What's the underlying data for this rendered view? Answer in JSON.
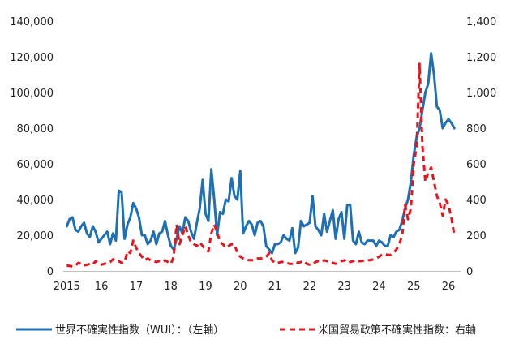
{
  "chart_data": {
    "type": "line",
    "x_start": 2015.0,
    "x_step": 0.0833333,
    "xlim": [
      2014.9,
      2026.35
    ],
    "x_ticks": [
      2015,
      2016,
      2017,
      2018,
      2019,
      2020,
      2021,
      2022,
      2023,
      2024,
      2025,
      2026
    ],
    "x_tick_labels": [
      "2015",
      "16",
      "17",
      "18",
      "19",
      "20",
      "21",
      "22",
      "23",
      "24",
      "25",
      "26"
    ],
    "y_left": {
      "lim": [
        0,
        140000
      ],
      "ticks": [
        0,
        20000,
        40000,
        60000,
        80000,
        100000,
        120000,
        140000
      ],
      "tick_labels": [
        "0",
        "20,000",
        "40,000",
        "60,000",
        "80,000",
        "100,000",
        "120,000",
        "140,000"
      ]
    },
    "y_right": {
      "lim": [
        0,
        1400
      ],
      "ticks": [
        0,
        200,
        400,
        600,
        800,
        1000,
        1200,
        1400
      ],
      "tick_labels": [
        "0",
        "200",
        "400",
        "600",
        "800",
        "1,000",
        "1,200",
        "1,400"
      ]
    },
    "grid": false,
    "legend_position": "bottom",
    "series": [
      {
        "name": "世界不確実性指数（WUI）：（左軸）",
        "axis": "left",
        "color": "#1f6fb4",
        "style": "solid",
        "values": [
          25000,
          29000,
          30000,
          23000,
          22000,
          25000,
          27000,
          21000,
          19000,
          25000,
          22000,
          16000,
          18000,
          20000,
          22000,
          15000,
          21000,
          17000,
          45000,
          44000,
          18000,
          26000,
          30000,
          38000,
          35000,
          30000,
          20000,
          20000,
          15000,
          17000,
          22000,
          15000,
          21000,
          22000,
          28000,
          20000,
          14000,
          12000,
          18000,
          25000,
          21000,
          30000,
          28000,
          22000,
          18000,
          27000,
          35000,
          51000,
          32000,
          28000,
          57000,
          40000,
          20000,
          33000,
          32000,
          40000,
          39000,
          52000,
          42000,
          40000,
          56000,
          21000,
          25000,
          28000,
          26000,
          20000,
          27000,
          28000,
          25000,
          14000,
          12000,
          10000,
          15000,
          15000,
          16000,
          20000,
          18000,
          17000,
          24000,
          10000,
          13000,
          28000,
          25000,
          26000,
          27000,
          42000,
          25000,
          23000,
          20000,
          32000,
          22000,
          28000,
          34000,
          18000,
          29000,
          33000,
          18000,
          37000,
          37000,
          17000,
          15000,
          22000,
          16000,
          15000,
          17000,
          17000,
          17000,
          14000,
          17000,
          16000,
          14000,
          14000,
          20000,
          19000,
          22000,
          23000,
          28000,
          35000,
          40000,
          50000,
          65000,
          75000,
          80000,
          90000,
          100000,
          105000,
          122000,
          110000,
          92000,
          90000,
          80000,
          83000,
          85000,
          83000,
          80000
        ]
      },
      {
        "name": "米国貿易政策不確実性指数：右軸",
        "axis": "right",
        "color": "#e8141c",
        "style": "dashed",
        "values": [
          30,
          28,
          25,
          30,
          45,
          40,
          30,
          35,
          40,
          35,
          55,
          45,
          35,
          40,
          45,
          50,
          65,
          55,
          55,
          45,
          50,
          110,
          100,
          170,
          130,
          100,
          80,
          60,
          70,
          60,
          55,
          50,
          55,
          50,
          60,
          50,
          40,
          80,
          260,
          150,
          200,
          250,
          200,
          160,
          150,
          140,
          160,
          140,
          120,
          110,
          210,
          260,
          220,
          160,
          150,
          130,
          140,
          150,
          150,
          100,
          80,
          70,
          65,
          60,
          60,
          60,
          70,
          70,
          70,
          80,
          100,
          60,
          45,
          45,
          50,
          50,
          45,
          40,
          40,
          50,
          45,
          50,
          55,
          40,
          35,
          35,
          50,
          55,
          50,
          60,
          55,
          50,
          45,
          40,
          45,
          55,
          60,
          45,
          50,
          55,
          60,
          55,
          55,
          60,
          60,
          60,
          65,
          70,
          80,
          90,
          95,
          90,
          90,
          100,
          120,
          150,
          200,
          370,
          290,
          350,
          600,
          700,
          1160,
          700,
          500,
          550,
          580,
          500,
          420,
          380,
          310,
          400,
          370,
          300,
          200
        ]
      }
    ]
  }
}
